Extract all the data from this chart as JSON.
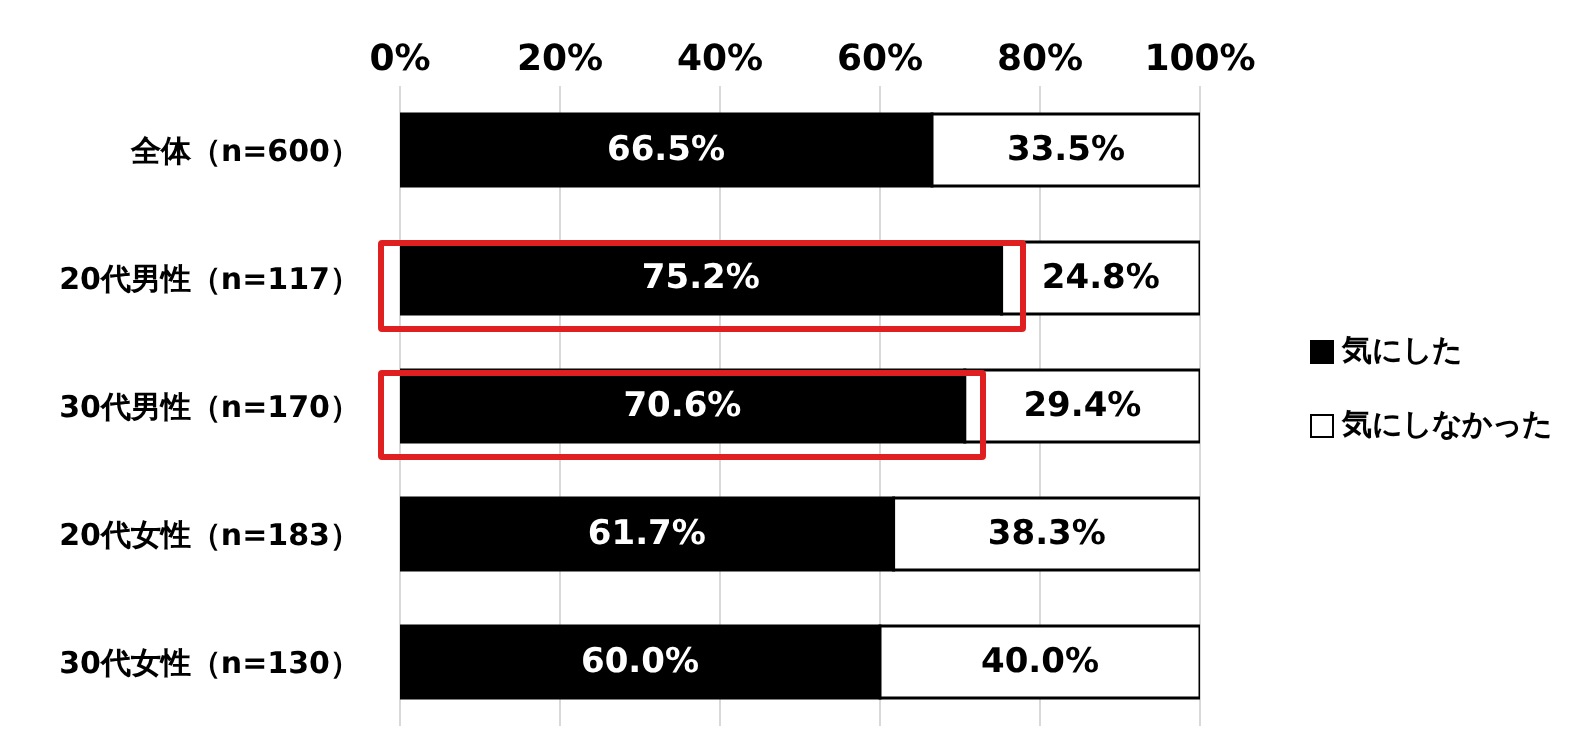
{
  "chart_data": {
    "type": "bar",
    "orientation": "horizontal",
    "stacked": true,
    "categories": [
      "全体（n=600）",
      "20代男性（n=117）",
      "30代男性（n=170）",
      "20代女性（n=183）",
      "30代女性（n=130）"
    ],
    "series": [
      {
        "name": "気にした",
        "color": "#000000",
        "values": [
          66.5,
          75.2,
          70.6,
          61.7,
          60.0
        ],
        "value_labels": [
          "66.5%",
          "75.2%",
          "70.6%",
          "61.7%",
          "60.0%"
        ]
      },
      {
        "name": "気にしなかった",
        "color": "#ffffff",
        "values": [
          33.5,
          24.8,
          29.4,
          38.3,
          40.0
        ],
        "value_labels": [
          "33.5%",
          "24.8%",
          "29.4%",
          "38.3%",
          "40.0%"
        ]
      }
    ],
    "xlim": [
      0,
      100
    ],
    "xticks": [
      {
        "value": 0,
        "label": "0%"
      },
      {
        "value": 20,
        "label": "20%"
      },
      {
        "value": 40,
        "label": "40%"
      },
      {
        "value": 60,
        "label": "60%"
      },
      {
        "value": 80,
        "label": "80%"
      },
      {
        "value": 100,
        "label": "100%"
      }
    ],
    "grid": "x",
    "legend": "right"
  }
}
